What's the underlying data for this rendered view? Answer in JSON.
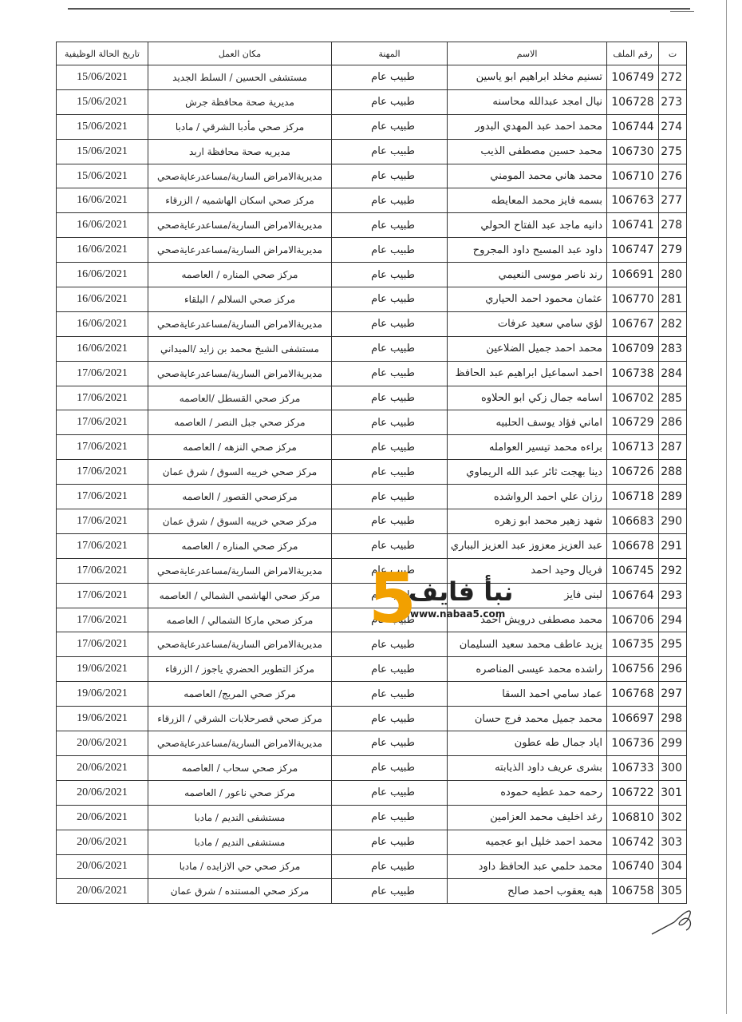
{
  "table": {
    "header": [
      "ت",
      "رقم الملف",
      "الاسم",
      "المهنة",
      "مكان العمل",
      "تاريخ الحالة الوظيفية"
    ],
    "rows": [
      [
        272,
        106749,
        "تسنيم مخلد ابراهيم ابو ياسين",
        "طبيب عام",
        "مستشفى الحسين / السلط الجديد",
        "15/06/2021"
      ],
      [
        273,
        106728,
        "نيال امجد عبدالله محاسنه",
        "طبيب عام",
        "مديرية صحة محافظة جرش",
        "15/06/2021"
      ],
      [
        274,
        106744,
        "محمد احمد عبد المهدي البدور",
        "طبيب عام",
        "مركز صحي مأدبا الشرقي / مادبا",
        "15/06/2021"
      ],
      [
        275,
        106730,
        "محمد حسين مصطفى الذيب",
        "طبيب عام",
        "مديريه صحة محافظة اربد",
        "15/06/2021"
      ],
      [
        276,
        106710,
        "محمد هاني محمد المومني",
        "طبيب عام",
        "مديريةالامراض السارية/مساعدرعايةصحي",
        "15/06/2021"
      ],
      [
        277,
        106763,
        "بسمه فايز محمد المعايطه",
        "طبيب عام",
        "مركز صحي اسكان الهاشميه / الزرقاء",
        "16/06/2021"
      ],
      [
        278,
        106741,
        "دانيه ماجد عبد الفتاح الحولي",
        "طبيب عام",
        "مديريةالامراض السارية/مساعدرعايةصحي",
        "16/06/2021"
      ],
      [
        279,
        106747,
        "داود عبد المسيح داود المجروح",
        "طبيب عام",
        "مديريةالامراض السارية/مساعدرعايةصحي",
        "16/06/2021"
      ],
      [
        280,
        106691,
        "رند ناصر موسى النعيمي",
        "طبيب عام",
        "مركز صحي المناره / العاصمه",
        "16/06/2021"
      ],
      [
        281,
        106770,
        "عثمان محمود احمد الحياري",
        "طبيب عام",
        "مركز صحي السلالم / البلقاء",
        "16/06/2021"
      ],
      [
        282,
        106767,
        "لؤي سامي سعيد عرفات",
        "طبيب عام",
        "مديريةالامراض السارية/مساعدرعايةصحي",
        "16/06/2021"
      ],
      [
        283,
        106709,
        "محمد احمد جميل الضلاعين",
        "طبيب عام",
        "مستشفى الشيخ محمد بن زايد /الميداني",
        "16/06/2021"
      ],
      [
        284,
        106738,
        "احمد اسماعيل ابراهيم عبد الحافظ",
        "طبيب عام",
        "مديريةالامراض السارية/مساعدرعايةصحي",
        "17/06/2021"
      ],
      [
        285,
        106702,
        "اسامه جمال زكي ابو الحلاوه",
        "طبيب عام",
        "مركز صحي القسطل /العاصمه",
        "17/06/2021"
      ],
      [
        286,
        106729,
        "اماني فؤاد يوسف الحلبيه",
        "طبيب عام",
        "مركز صحي جبل النصر / العاصمه",
        "17/06/2021"
      ],
      [
        287,
        106713,
        "براءه محمد تيسير العوامله",
        "طبيب عام",
        "مركز صحي النزهه / العاصمه",
        "17/06/2021"
      ],
      [
        288,
        106726,
        "دينا بهجت ثائر عبد الله الريماوي",
        "طبيب عام",
        "مركز صحي خريبه السوق / شرق عمان",
        "17/06/2021"
      ],
      [
        289,
        106718,
        "رزان علي احمد الرواشده",
        "طبيب عام",
        "مركزصحي القصور / العاصمه",
        "17/06/2021"
      ],
      [
        290,
        106683,
        "شهد زهير محمد ابو زهره",
        "طبيب عام",
        "مركز صحي خريبه السوق / شرق عمان",
        "17/06/2021"
      ],
      [
        291,
        106678,
        "عبد العزيز معزوز عبد العزيز البباري",
        "طبيب عام",
        "مركز صحي المناره / العاصمه",
        "17/06/2021"
      ],
      [
        292,
        106745,
        "فريال وحيد احمد",
        "طبيب عام",
        "مديريةالامراض السارية/مساعدرعايةصحي",
        "17/06/2021"
      ],
      [
        293,
        106764,
        "لبنى فايز",
        "طبيب عام",
        "مركز صحي الهاشمي الشمالي / العاصمه",
        "17/06/2021"
      ],
      [
        294,
        106706,
        "محمد مصطفى درويش احمد",
        "طبيب عام",
        "مركز صحي ماركا الشمالي / العاصمه",
        "17/06/2021"
      ],
      [
        295,
        106735,
        "يزيد عاطف محمد سعيد السليمان",
        "طبيب عام",
        "مديريةالامراض السارية/مساعدرعايةصحي",
        "17/06/2021"
      ],
      [
        296,
        106756,
        "راشده محمد عيسى المناصره",
        "طبيب عام",
        "مركز التطوير الحضري ياجوز / الزرقاء",
        "19/06/2021"
      ],
      [
        297,
        106768,
        "عماد سامي احمد السقا",
        "طبيب عام",
        "مركز صحي المريج/ العاصمه",
        "19/06/2021"
      ],
      [
        298,
        106697,
        "محمد جميل محمد فرج حسان",
        "طبيب عام",
        "مركز صحي قصرحلابات الشرقي / الزرقاء",
        "19/06/2021"
      ],
      [
        299,
        106736,
        "اياد جمال طه عطون",
        "طبيب عام",
        "مديريةالامراض السارية/مساعدرعايةصحي",
        "20/06/2021"
      ],
      [
        300,
        106733,
        "بشرى عريف داود الذيابته",
        "طبيب عام",
        "مركز صحي سحاب / العاصمه",
        "20/06/2021"
      ],
      [
        301,
        106722,
        "رحمه حمد عطيه حموده",
        "طبيب عام",
        "مركز صحي ناعور / العاصمه",
        "20/06/2021"
      ],
      [
        302,
        106810,
        "رغد اخليف محمد العزامين",
        "طبيب عام",
        "مستشفى النديم / مادبا",
        "20/06/2021"
      ],
      [
        303,
        106742,
        "محمد احمد خليل ابو عجميه",
        "طبيب عام",
        "مستشفى النديم / مادبا",
        "20/06/2021"
      ],
      [
        304,
        106740,
        "محمد حلمي عبد الحافظ داود",
        "طبيب عام",
        "مركز صحي حي الازايده / مادبا",
        "20/06/2021"
      ],
      [
        305,
        106758,
        "هبه يعقوب احمد صالح",
        "طبيب عام",
        "مركز صحي المستنده / شرق عمان",
        "20/06/2021"
      ]
    ]
  },
  "watermark": {
    "digit": "5",
    "name": "نبأ فايف",
    "url": "www.nabaa5.com"
  }
}
